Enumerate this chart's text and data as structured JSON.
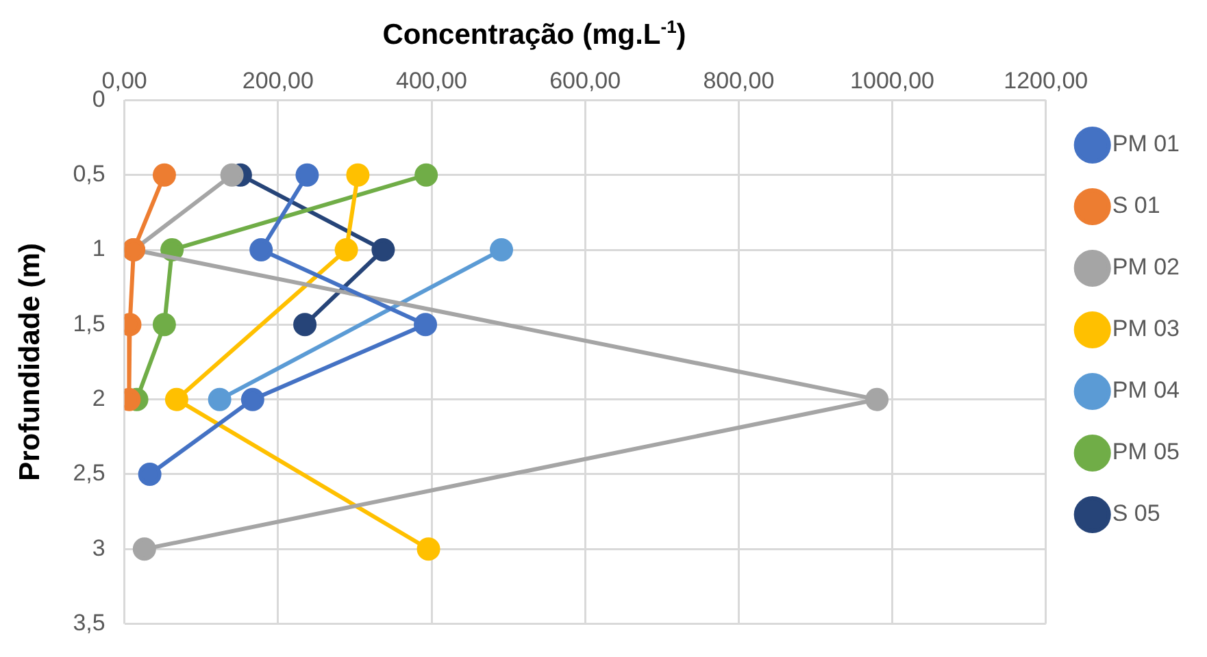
{
  "chart_data": {
    "type": "line",
    "xlabel": "Concentração (mg.L$^{-1}$)",
    "ylabel": "Profundidade (m)",
    "series": [
      {
        "name": "PM 01",
        "color": "#4472c4",
        "x": [
          238,
          178,
          392,
          167,
          33
        ],
        "values": [
          0.5,
          1,
          1.5,
          2,
          2.5
        ]
      },
      {
        "name": "S 01",
        "color": "#ed7d31",
        "x": [
          52,
          12,
          7,
          6
        ],
        "values": [
          0.5,
          1,
          1.5,
          2
        ]
      },
      {
        "name": "PM 02",
        "color": "#a5a5a5",
        "x": [
          140,
          12,
          980,
          26
        ],
        "values": [
          0.5,
          1,
          2,
          3
        ]
      },
      {
        "name": "PM 03",
        "color": "#ffc000",
        "x": [
          304,
          289,
          68,
          396
        ],
        "values": [
          0.5,
          1,
          2,
          3
        ]
      },
      {
        "name": "PM 04",
        "color": "#5b9bd5",
        "x": [
          491,
          124
        ],
        "values": [
          1,
          2
        ]
      },
      {
        "name": "PM 05",
        "color": "#70ad47",
        "x": [
          393,
          62,
          52,
          16
        ],
        "values": [
          0.5,
          1,
          1.5,
          2
        ]
      },
      {
        "name": "S 05",
        "color": "#264478",
        "x": [
          151,
          337,
          235
        ],
        "values": [
          0.5,
          1,
          1.5
        ]
      }
    ],
    "xlim": [
      0,
      1200
    ],
    "xticks": [
      {
        "value": 0,
        "label": "0,00"
      },
      {
        "value": 200,
        "label": "200,00"
      },
      {
        "value": 400,
        "label": "400,00"
      },
      {
        "value": 600,
        "label": "600,00"
      },
      {
        "value": 800,
        "label": "800,00"
      },
      {
        "value": 1000,
        "label": "1000,00"
      },
      {
        "value": 1200,
        "label": "1200,00"
      }
    ],
    "ylim": [
      3.5,
      0
    ],
    "yticks": [
      0,
      {
        "value": 0.5,
        "label": "0,5"
      },
      1,
      {
        "value": 1.5,
        "label": "1,5"
      },
      2,
      {
        "value": 2.5,
        "label": "2,5"
      },
      3,
      {
        "value": 3.5,
        "label": "3,5"
      }
    ],
    "grid": true,
    "legend": "right",
    "marker": "circle",
    "line_style": "solid"
  }
}
